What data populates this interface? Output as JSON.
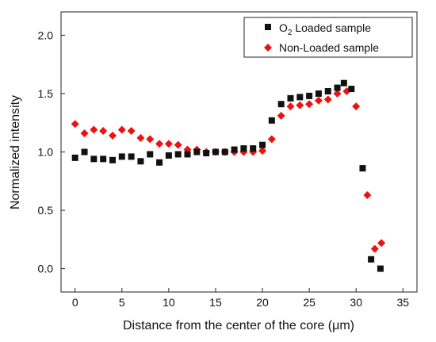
{
  "chart_data": {
    "type": "scatter",
    "title": "",
    "xlabel": "Distance from the center of the core (μm)",
    "ylabel": "Normalized intensity",
    "xlim": [
      -1.5,
      36.5
    ],
    "ylim": [
      -0.2,
      2.2
    ],
    "xticks": [
      0,
      5,
      10,
      15,
      20,
      25,
      30,
      35
    ],
    "yticks": [
      0.0,
      0.5,
      1.0,
      1.5,
      2.0
    ],
    "xtick_labels": [
      "0",
      "5",
      "10",
      "15",
      "20",
      "25",
      "30",
      "35"
    ],
    "ytick_labels": [
      "0.0",
      "0.5",
      "1.0",
      "1.5",
      "2.0"
    ],
    "grid": false,
    "legend_position": "top-right",
    "series": [
      {
        "name_main": "O",
        "name_sub": "2",
        "name_rest": " Loaded sample",
        "color": "#111111",
        "marker": "square",
        "x": [
          0,
          1,
          2,
          3,
          4,
          5,
          6,
          7,
          8,
          9,
          10,
          11,
          12,
          13,
          14,
          15,
          16,
          17,
          18,
          19,
          20,
          21,
          22,
          23,
          24,
          25,
          26,
          27,
          28,
          28.7,
          29.5,
          30.7,
          31.6,
          32.6
        ],
        "y": [
          0.95,
          1.0,
          0.94,
          0.94,
          0.93,
          0.96,
          0.96,
          0.92,
          0.98,
          0.91,
          0.97,
          0.98,
          0.98,
          1.0,
          0.99,
          1.0,
          1.0,
          1.02,
          1.03,
          1.03,
          1.06,
          1.27,
          1.41,
          1.46,
          1.47,
          1.48,
          1.5,
          1.52,
          1.55,
          1.59,
          1.54,
          0.86,
          0.08,
          0.0
        ]
      },
      {
        "name_main": "Non-Loaded sample",
        "name_sub": "",
        "name_rest": "",
        "color": "#ee1111",
        "marker": "diamond",
        "x": [
          0,
          1,
          2,
          3,
          4,
          5,
          6,
          7,
          8,
          9,
          10,
          11,
          12,
          13,
          14,
          15,
          16,
          17,
          18,
          19,
          20,
          21,
          22,
          23,
          24,
          25,
          26,
          27,
          28,
          29,
          30,
          31.2,
          32,
          32.7
        ],
        "y": [
          1.24,
          1.16,
          1.19,
          1.18,
          1.14,
          1.19,
          1.18,
          1.12,
          1.11,
          1.07,
          1.07,
          1.06,
          1.02,
          1.02,
          1.0,
          1.0,
          1.0,
          1.0,
          1.0,
          1.0,
          1.01,
          1.11,
          1.31,
          1.39,
          1.4,
          1.41,
          1.44,
          1.45,
          1.5,
          1.52,
          1.39,
          0.63,
          0.17,
          0.22
        ]
      }
    ]
  }
}
